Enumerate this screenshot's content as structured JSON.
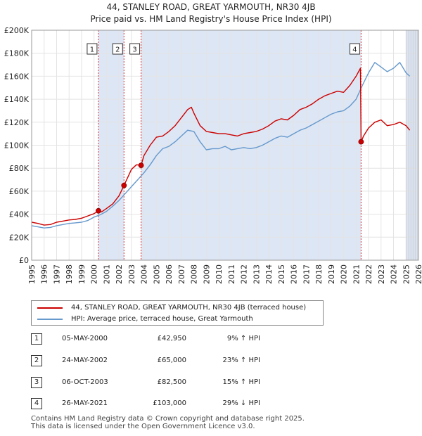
{
  "title_line1": "44, STANLEY ROAD, GREAT YARMOUTH, NR30 4JB",
  "title_line2": "Price paid vs. HM Land Registry's House Price Index (HPI)",
  "chart_data": {
    "type": "line",
    "title": "44, STANLEY ROAD, GREAT YARMOUTH, NR30 4JB — Price paid vs. HM Land Registry's House Price Index (HPI)",
    "xlabel": "",
    "ylabel": "",
    "xlim": [
      1995,
      2026
    ],
    "ylim": [
      0,
      200000
    ],
    "x_ticks": [
      1995,
      1996,
      1997,
      1998,
      1999,
      2000,
      2001,
      2002,
      2003,
      2004,
      2005,
      2006,
      2007,
      2008,
      2009,
      2010,
      2011,
      2012,
      2013,
      2014,
      2015,
      2016,
      2017,
      2018,
      2019,
      2020,
      2021,
      2022,
      2023,
      2024,
      2025,
      2026
    ],
    "y_ticks": [
      0,
      20000,
      40000,
      60000,
      80000,
      100000,
      120000,
      140000,
      160000,
      180000,
      200000
    ],
    "y_tick_labels": [
      "£0",
      "£20K",
      "£40K",
      "£60K",
      "£80K",
      "£100K",
      "£120K",
      "£140K",
      "£160K",
      "£180K",
      "£200K"
    ],
    "colors": {
      "property": "#cc0000",
      "hpi": "#6699cc",
      "shade": "#dde6f5",
      "marker_line": "#dd3333"
    },
    "shaded_regions": [
      [
        2000.35,
        2002.4
      ],
      [
        2003.77,
        2021.4
      ],
      [
        2025.05,
        2026.0
      ]
    ],
    "series": [
      {
        "name": "44, STANLEY ROAD, GREAT YARMOUTH, NR30 4JB (terraced house)",
        "color": "#cc0000",
        "x": [
          1995.0,
          1995.5,
          1996.0,
          1996.5,
          1997.0,
          1997.5,
          1998.0,
          1998.5,
          1999.0,
          1999.5,
          2000.0,
          2000.35,
          2000.6,
          2001.0,
          2001.5,
          2002.0,
          2002.4,
          2002.7,
          2003.0,
          2003.4,
          2003.77,
          2004.0,
          2004.5,
          2005.0,
          2005.5,
          2006.0,
          2006.5,
          2007.0,
          2007.5,
          2007.8,
          2008.0,
          2008.5,
          2009.0,
          2009.5,
          2010.0,
          2010.5,
          2011.0,
          2011.5,
          2012.0,
          2012.5,
          2013.0,
          2013.5,
          2014.0,
          2014.5,
          2015.0,
          2015.5,
          2016.0,
          2016.5,
          2017.0,
          2017.5,
          2018.0,
          2018.5,
          2019.0,
          2019.5,
          2020.0,
          2020.5,
          2021.0,
          2021.35,
          2021.4,
          2021.6,
          2022.0,
          2022.5,
          2023.0,
          2023.5,
          2024.0,
          2024.5,
          2025.0,
          2025.3
        ],
        "y": [
          33000,
          32000,
          30500,
          31000,
          33000,
          34000,
          35000,
          35500,
          36500,
          38500,
          40500,
          42950,
          42000,
          45000,
          49000,
          56000,
          65000,
          72000,
          79000,
          83000,
          82500,
          91000,
          100000,
          107000,
          108000,
          112000,
          117000,
          124000,
          131000,
          133000,
          128000,
          117000,
          112000,
          111000,
          110000,
          110000,
          109000,
          108000,
          110000,
          111000,
          112000,
          114000,
          117000,
          121000,
          123000,
          122000,
          126000,
          131000,
          133000,
          136000,
          140000,
          143000,
          145000,
          147000,
          146000,
          152000,
          160000,
          167000,
          103000,
          108000,
          115000,
          120000,
          122000,
          117000,
          118000,
          120000,
          117000,
          113000
        ]
      },
      {
        "name": "HPI: Average price, terraced house, Great Yarmouth",
        "color": "#6699cc",
        "x": [
          1995.0,
          1995.5,
          1996.0,
          1996.5,
          1997.0,
          1997.5,
          1998.0,
          1998.5,
          1999.0,
          1999.5,
          2000.0,
          2000.5,
          2001.0,
          2001.5,
          2002.0,
          2002.5,
          2003.0,
          2003.5,
          2004.0,
          2004.5,
          2005.0,
          2005.5,
          2006.0,
          2006.5,
          2007.0,
          2007.5,
          2008.0,
          2008.5,
          2009.0,
          2009.5,
          2010.0,
          2010.5,
          2011.0,
          2011.5,
          2012.0,
          2012.5,
          2013.0,
          2013.5,
          2014.0,
          2014.5,
          2015.0,
          2015.5,
          2016.0,
          2016.5,
          2017.0,
          2017.5,
          2018.0,
          2018.5,
          2019.0,
          2019.5,
          2020.0,
          2020.5,
          2021.0,
          2021.5,
          2022.0,
          2022.5,
          2023.0,
          2023.5,
          2024.0,
          2024.5,
          2025.0,
          2025.3
        ],
        "y": [
          30000,
          29000,
          28000,
          28500,
          30000,
          31000,
          32000,
          32500,
          33000,
          34500,
          37500,
          39500,
          42500,
          47000,
          52000,
          58000,
          64000,
          70000,
          76000,
          83000,
          91000,
          97000,
          99000,
          103000,
          108000,
          113000,
          112000,
          103000,
          96000,
          97000,
          97000,
          99000,
          96000,
          97000,
          98000,
          97000,
          98000,
          100000,
          103000,
          106000,
          108000,
          107000,
          110000,
          113000,
          115000,
          118000,
          121000,
          124000,
          127000,
          129000,
          130000,
          134000,
          140000,
          152000,
          163000,
          172000,
          168000,
          164000,
          167000,
          172000,
          163000,
          160000
        ]
      }
    ],
    "sales": [
      {
        "label": "1",
        "x": 2000.35,
        "y": 42950
      },
      {
        "label": "2",
        "x": 2002.4,
        "y": 65000
      },
      {
        "label": "3",
        "x": 2003.77,
        "y": 82500
      },
      {
        "label": "4",
        "x": 2021.4,
        "y": 103000
      }
    ]
  },
  "legend": {
    "property_label": "44, STANLEY ROAD, GREAT YARMOUTH, NR30 4JB (terraced house)",
    "hpi_label": "HPI: Average price, terraced house, Great Yarmouth"
  },
  "transactions": [
    {
      "num": "1",
      "date": "05-MAY-2000",
      "price": "£42,950",
      "hpi": "9% ↑ HPI"
    },
    {
      "num": "2",
      "date": "24-MAY-2002",
      "price": "£65,000",
      "hpi": "23% ↑ HPI"
    },
    {
      "num": "3",
      "date": "06-OCT-2003",
      "price": "£82,500",
      "hpi": "15% ↑ HPI"
    },
    {
      "num": "4",
      "date": "26-MAY-2021",
      "price": "£103,000",
      "hpi": "29% ↓ HPI"
    }
  ],
  "footer": {
    "line1": "Contains HM Land Registry data © Crown copyright and database right 2025.",
    "line2": "This data is licensed under the Open Government Licence v3.0."
  }
}
